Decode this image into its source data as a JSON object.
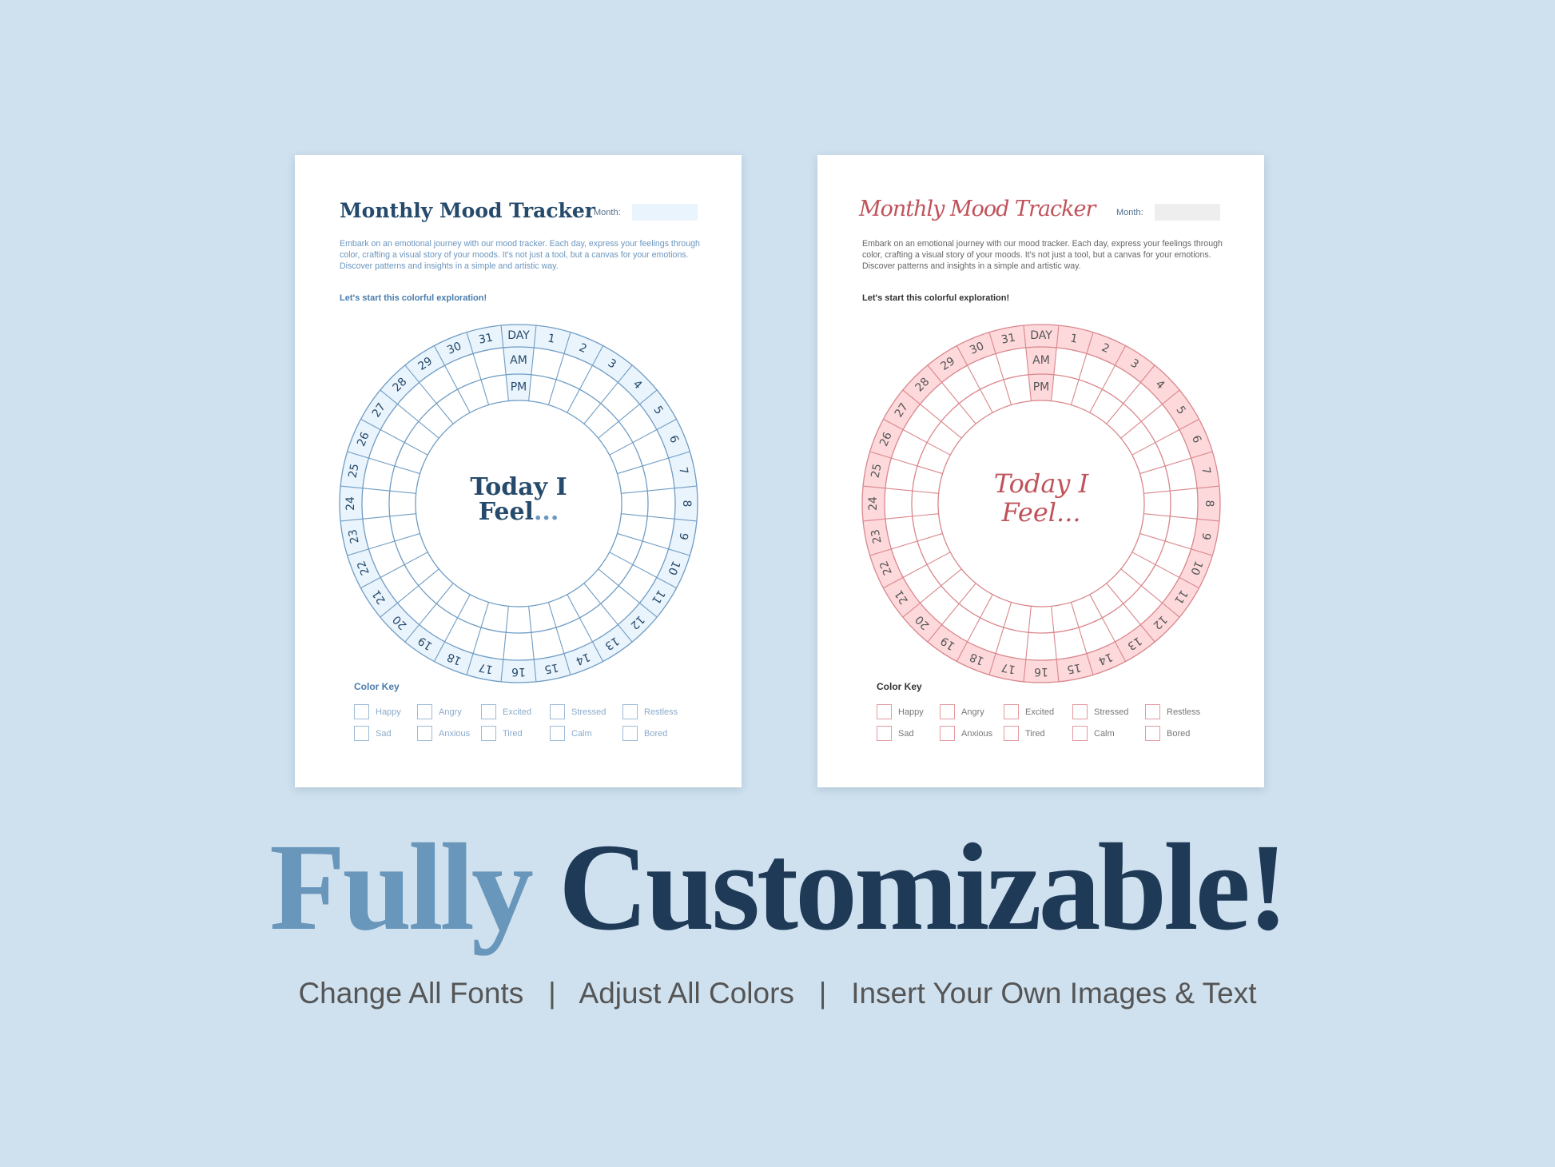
{
  "pages": [
    {
      "theme": "blue",
      "title": "Monthly Mood Tracker",
      "month_label": "Month:",
      "description": "Embark on an emotional journey with our mood tracker. Each day, express your feelings through color, crafting a visual story of your moods. It's not just a tool, but a canvas for your emotions. Discover patterns and insights in a simple and artistic way.",
      "cta": "Let's start this colorful exploration!",
      "center_line1": "Today I",
      "center_line2": "Feel",
      "center_dots": "...",
      "color_key_title": "Color Key",
      "colors": {
        "line": "#6f9cc4",
        "fill": "#eaf4fc",
        "text": "#254a6b"
      }
    },
    {
      "theme": "red",
      "title": "Monthly Mood Tracker",
      "month_label": "Month:",
      "description": "Embark on an emotional journey with our mood tracker. Each day, express your feelings through color, crafting a visual story of your moods. It's not just a tool, but a canvas for your emotions. Discover patterns and insights in a simple and artistic way.",
      "cta": "Let's start this colorful exploration!",
      "center_line1": "Today I",
      "center_line2": "Feel",
      "center_dots": "...",
      "color_key_title": "Color Key",
      "colors": {
        "line": "#d9868b",
        "fill": "#fdd9dc",
        "text": "#555555"
      }
    }
  ],
  "wheel": {
    "day_header": "DAY",
    "am": "AM",
    "pm": "PM",
    "days": [
      "1",
      "2",
      "3",
      "4",
      "5",
      "6",
      "7",
      "8",
      "9",
      "10",
      "11",
      "12",
      "13",
      "14",
      "15",
      "16",
      "17",
      "18",
      "19",
      "20",
      "21",
      "22",
      "23",
      "24",
      "25",
      "26",
      "27",
      "28",
      "29",
      "30",
      "31"
    ]
  },
  "moods": [
    [
      "Happy",
      "Angry",
      "Excited",
      "Stressed",
      "Restless"
    ],
    [
      "Sad",
      "Anxious",
      "Tired",
      "Calm",
      "Bored"
    ]
  ],
  "headline": {
    "word1": "Fully",
    "word2": "Customizable!"
  },
  "features": [
    "Change All Fonts",
    "Adjust All Colors",
    "Insert Your Own Images & Text"
  ],
  "separator": "|",
  "background_color": "#cfe1ef"
}
